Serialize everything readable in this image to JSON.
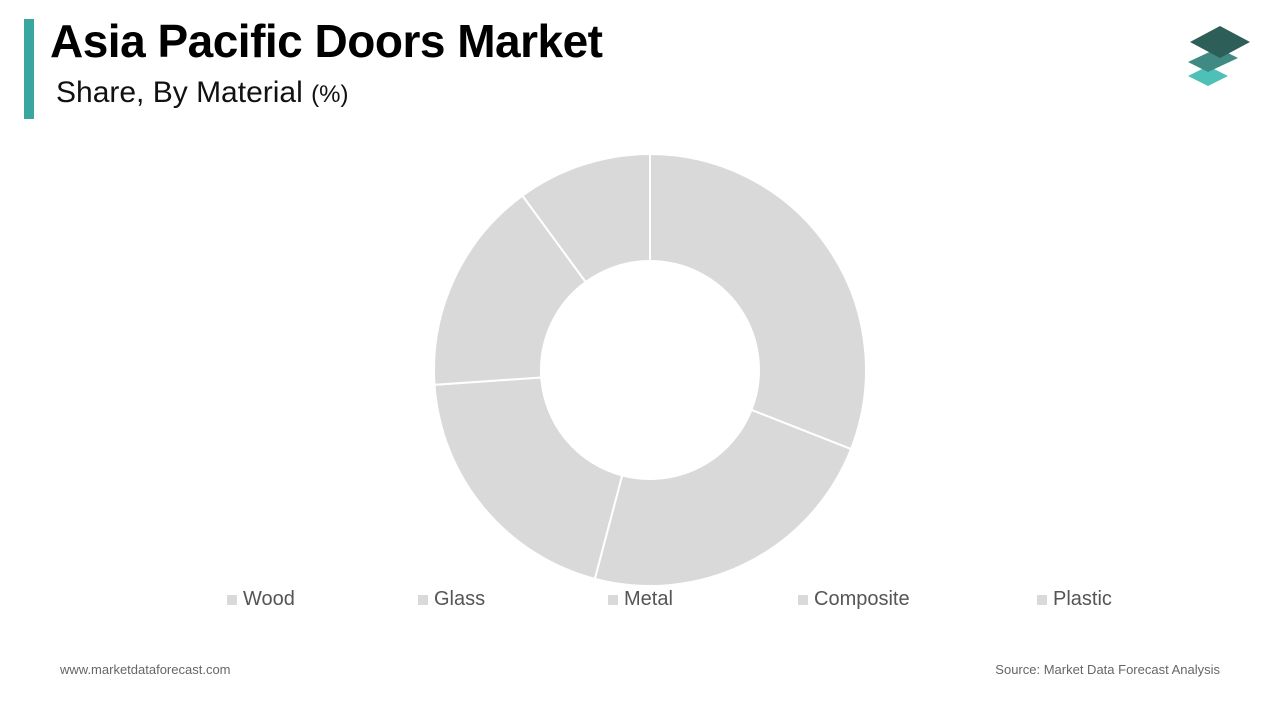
{
  "header": {
    "title": "Asia Pacific Doors Market",
    "subtitle": "Share, By Material",
    "subtitle_unit": "(%)"
  },
  "logo": {
    "icon": "stacked-layers-logo-icon",
    "colors": [
      "#2e5e58",
      "#3f8a83",
      "#4fc0b8"
    ]
  },
  "colors": {
    "accent": "#3aa6a0",
    "slice_fill": "#d9d9d9",
    "slice_border": "#ffffff"
  },
  "chart_data": {
    "type": "pie",
    "donut": true,
    "categories": [
      "Wood",
      "Glass",
      "Metal",
      "Composite",
      "Plastic"
    ],
    "values": [
      30.5,
      22.8,
      19.5,
      15.8,
      9.9
    ],
    "legend_position": "bottom"
  },
  "footer": {
    "website": "www.marketdataforecast.com",
    "source": "Source: Market Data Forecast Analysis"
  }
}
